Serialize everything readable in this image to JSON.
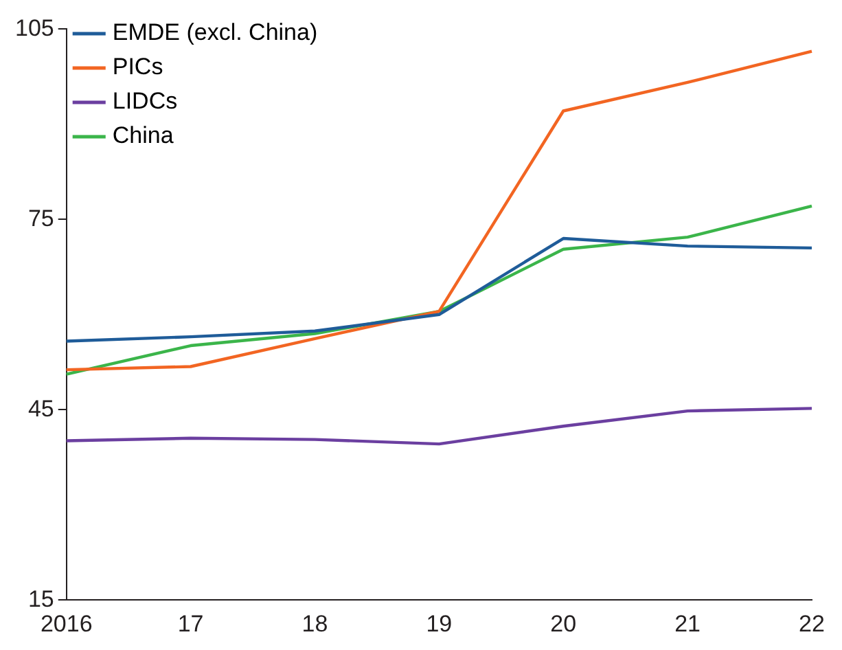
{
  "chart_data": {
    "type": "line",
    "categories": [
      "2016",
      "17",
      "18",
      "19",
      "20",
      "21",
      "22"
    ],
    "series": [
      {
        "name": "EMDE (excl. China)",
        "color": "#1f5c99",
        "values": [
          55.8,
          56.5,
          57.4,
          60.0,
          72.0,
          70.8,
          70.5
        ]
      },
      {
        "name": "PICs",
        "color": "#f26522",
        "values": [
          51.3,
          51.8,
          56.2,
          60.5,
          92.1,
          96.6,
          101.5
        ]
      },
      {
        "name": "LIDCs",
        "color": "#6b3fa0",
        "values": [
          40.1,
          40.5,
          40.3,
          39.6,
          42.4,
          44.8,
          45.2
        ]
      },
      {
        "name": "China",
        "color": "#3bb54a",
        "values": [
          50.6,
          55.1,
          57.0,
          60.5,
          70.3,
          72.2,
          77.1
        ]
      }
    ],
    "ylim": [
      15,
      105
    ],
    "yticks": [
      15,
      45,
      75,
      105
    ],
    "grid": false,
    "legend": "top left",
    "marker": "none",
    "line_style": "solid"
  }
}
